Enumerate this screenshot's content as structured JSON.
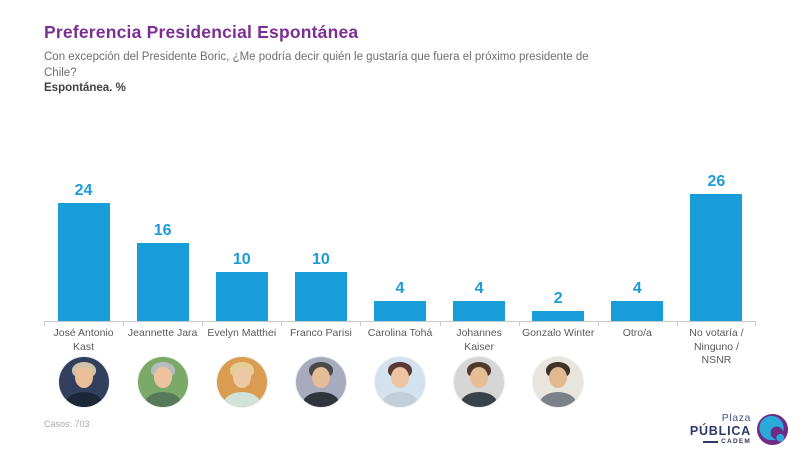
{
  "slide": {
    "title": "Preferencia Presidencial Espontánea",
    "subtitle": "Con excepción del Presidente Boric, ¿Me podría decir quién le gustaría que fuera el próximo presidente de Chile?",
    "note": "Espontánea. %",
    "footer": {
      "cases": "Casos: 703"
    },
    "logo": {
      "line1": "Plaza",
      "line2": "PÚBLICA",
      "line3": "CADEM"
    }
  },
  "colors": {
    "title_purple": "#7c2f93",
    "bar_blue": "#189dd8",
    "value_label_blue": "#1b9cd8",
    "subtitle_gray": "#6d6e71",
    "note_dark": "#414042",
    "category_gray": "#58595b",
    "axis_gray": "#c9cacb",
    "cases_gray": "#a7a9ac",
    "logo_navy": "#2d3a66",
    "logo_purple": "#6f2c87",
    "logo_teal": "#29aadb"
  },
  "chart_data": {
    "type": "bar",
    "title": "Preferencia Presidencial Espontánea",
    "subtitle": "Con excepción del Presidente Boric, ¿Me podría decir quién le gustaría que fuera el próximo presidente de Chile?",
    "unit_note": "Espontánea. %",
    "categories": [
      "José Antonio Kast",
      "Jeannette Jara",
      "Evelyn Matthei",
      "Franco Parisi",
      "Carolina Tohá",
      "Johannes Kaiser",
      "Gonzalo Winter",
      "Otro/a",
      "No votaría / Ninguno / NSNR"
    ],
    "values": [
      24,
      16,
      10,
      10,
      4,
      4,
      2,
      4,
      26
    ],
    "bar_color": "#189dd8",
    "ylim": [
      0,
      30
    ],
    "grid": false,
    "data_labels": true,
    "legend": "none",
    "sample_note": "Casos: 703"
  },
  "avatars": [
    {
      "candidate": "José Antonio Kast",
      "bg": "#32405e",
      "skin": "#e9c098",
      "hair": "#cfc2a8",
      "torso": "#1c2738"
    },
    {
      "candidate": "Jeannette Jara",
      "bg": "#7aa968",
      "skin": "#eec3a0",
      "hair": "#b9bcbd",
      "torso": "#56795a"
    },
    {
      "candidate": "Evelyn Matthei",
      "bg": "#d99c50",
      "skin": "#ecc9a4",
      "hair": "#e3cf96",
      "torso": "#cfe3d8"
    },
    {
      "candidate": "Franco Parisi",
      "bg": "#a7abbd",
      "skin": "#e5bd96",
      "hair": "#4a4a4a",
      "torso": "#30343c"
    },
    {
      "candidate": "Carolina Tohá",
      "bg": "#d3e2ee",
      "skin": "#edc5a2",
      "hair": "#5d3a35",
      "torso": "#c2ced8"
    },
    {
      "candidate": "Johannes Kaiser",
      "bg": "#d6d6d6",
      "skin": "#e7bd96",
      "hair": "#4f3b2d",
      "torso": "#3a4148"
    },
    {
      "candidate": "Gonzalo Winter",
      "bg": "#e8e5df",
      "skin": "#e2b88e",
      "hair": "#3f3328",
      "torso": "#7b8187"
    }
  ]
}
